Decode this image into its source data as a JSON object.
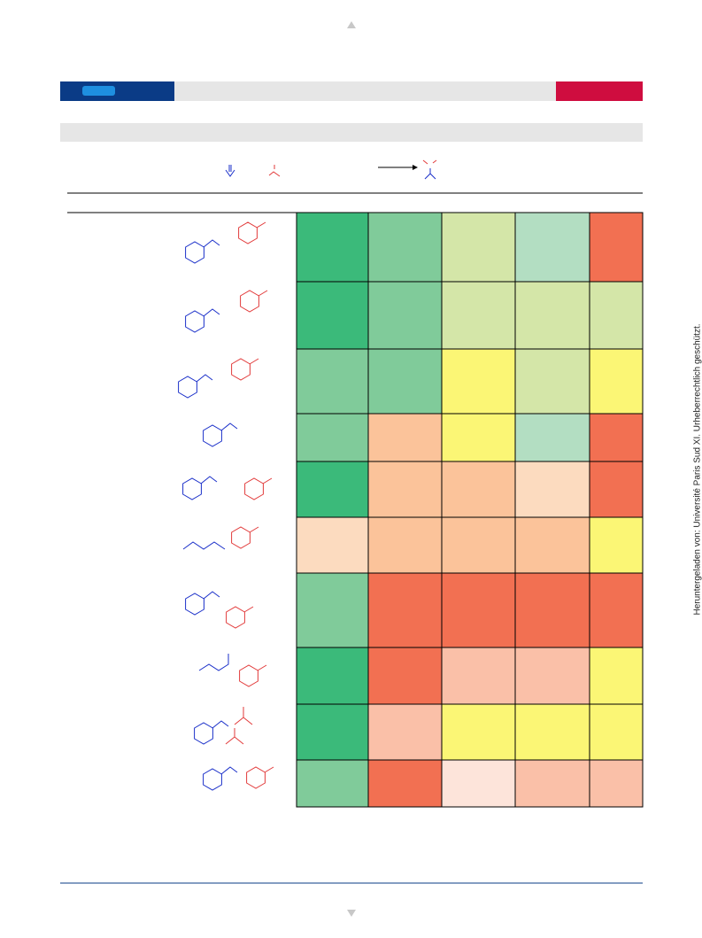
{
  "watermark": "Heruntergeladen von: Université Paris Sud XI. Urheberrechtlich geschützt."
}
